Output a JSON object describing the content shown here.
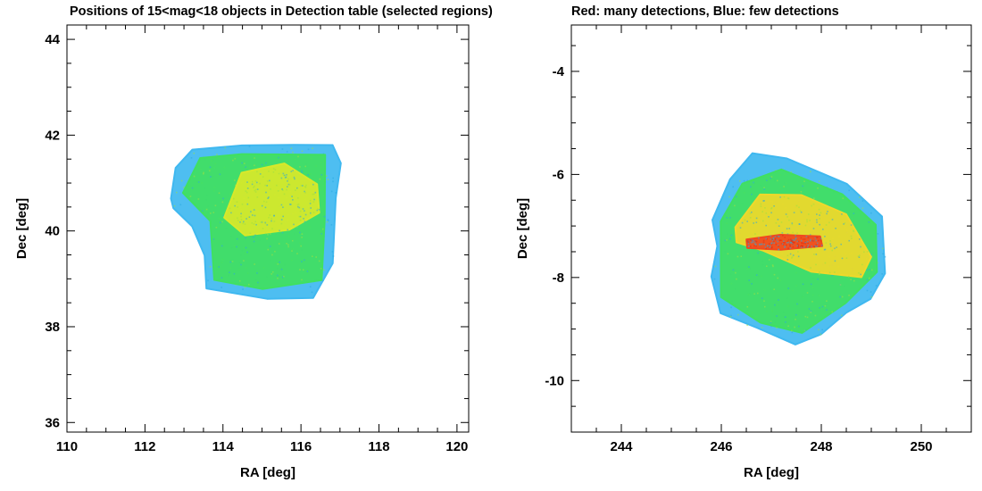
{
  "title_left": "Positions of 15<mag<18 objects in Detection table (selected regions)",
  "title_right": "Red: many detections, Blue: few detections",
  "chart_data": [
    {
      "type": "scatter",
      "xlabel": "RA [deg]",
      "ylabel": "Dec [deg]",
      "xlim": [
        110,
        120.3
      ],
      "ylim": [
        35.8,
        44.3
      ],
      "xticks": [
        "110",
        "112",
        "114",
        "116",
        "118",
        "120"
      ],
      "xtick_values": [
        110,
        112,
        114,
        116,
        118,
        120
      ],
      "yticks": [
        "36",
        "38",
        "40",
        "42",
        "44"
      ],
      "ytick_values": [
        36,
        38,
        40,
        42,
        44
      ],
      "grid": false,
      "regions": [
        {
          "name": "",
          "density": "low",
          "color": "#3fb8f0",
          "outline": [
            [
              112.7,
              40.7
            ],
            [
              112.8,
              41.3
            ],
            [
              113.2,
              41.7
            ],
            [
              114.5,
              41.8
            ],
            [
              115.8,
              41.8
            ],
            [
              116.8,
              41.8
            ],
            [
              117.0,
              41.4
            ],
            [
              116.9,
              40.7
            ],
            [
              116.8,
              39.3
            ],
            [
              116.3,
              38.6
            ],
            [
              115.1,
              38.6
            ],
            [
              113.6,
              38.8
            ],
            [
              113.5,
              39.5
            ],
            [
              113.2,
              40.1
            ],
            [
              112.7,
              40.5
            ]
          ]
        },
        {
          "name": "",
          "density": "medium",
          "color": "#40e060",
          "outline": [
            [
              113.0,
              40.8
            ],
            [
              113.4,
              41.5
            ],
            [
              114.5,
              41.6
            ],
            [
              116.6,
              41.6
            ],
            [
              116.6,
              40.2
            ],
            [
              116.5,
              39.0
            ],
            [
              115.0,
              38.8
            ],
            [
              113.8,
              39.0
            ],
            [
              113.7,
              40.2
            ]
          ]
        },
        {
          "name": "",
          "density": "high",
          "color": "#d8e82a",
          "outline": [
            [
              114.0,
              40.3
            ],
            [
              114.5,
              41.2
            ],
            [
              115.6,
              41.4
            ],
            [
              116.4,
              41.0
            ],
            [
              116.5,
              40.4
            ],
            [
              115.7,
              40.0
            ],
            [
              114.6,
              39.9
            ]
          ]
        }
      ]
    },
    {
      "type": "scatter",
      "xlabel": "RA [deg]",
      "ylabel": "Dec [deg]",
      "xlim": [
        243,
        251
      ],
      "ylim": [
        -11,
        -3.1
      ],
      "xticks": [
        "244",
        "246",
        "248",
        "250"
      ],
      "xtick_values": [
        244,
        246,
        248,
        250
      ],
      "yticks": [
        "-10",
        "-8",
        "-6",
        "-4"
      ],
      "ytick_values": [
        -10,
        -8,
        -6,
        -4
      ],
      "grid": false,
      "regions": [
        {
          "name": "",
          "density": "low",
          "color": "#3fb8f0",
          "outline": [
            [
              245.8,
              -6.9
            ],
            [
              246.2,
              -6.1
            ],
            [
              246.6,
              -5.6
            ],
            [
              247.3,
              -5.7
            ],
            [
              248.5,
              -6.2
            ],
            [
              249.2,
              -6.8
            ],
            [
              249.3,
              -7.9
            ],
            [
              249.0,
              -8.4
            ],
            [
              248.5,
              -8.7
            ],
            [
              248.0,
              -9.1
            ],
            [
              247.5,
              -9.3
            ],
            [
              246.7,
              -9.0
            ],
            [
              246.0,
              -8.7
            ],
            [
              245.8,
              -8.0
            ],
            [
              245.9,
              -7.4
            ]
          ]
        },
        {
          "name": "",
          "density": "medium",
          "color": "#40e060",
          "outline": [
            [
              246.0,
              -6.9
            ],
            [
              246.4,
              -6.2
            ],
            [
              247.2,
              -5.9
            ],
            [
              248.4,
              -6.4
            ],
            [
              249.1,
              -7.0
            ],
            [
              249.1,
              -7.9
            ],
            [
              248.5,
              -8.5
            ],
            [
              247.6,
              -9.1
            ],
            [
              246.8,
              -8.9
            ],
            [
              246.0,
              -8.4
            ]
          ]
        },
        {
          "name": "",
          "density": "high",
          "color": "#f0d82a",
          "outline": [
            [
              246.3,
              -7.0
            ],
            [
              246.8,
              -6.4
            ],
            [
              247.6,
              -6.4
            ],
            [
              248.5,
              -6.8
            ],
            [
              249.0,
              -7.6
            ],
            [
              248.8,
              -8.0
            ],
            [
              247.8,
              -7.9
            ],
            [
              246.8,
              -7.5
            ],
            [
              246.3,
              -7.3
            ]
          ]
        },
        {
          "name": "",
          "density": "very high",
          "color": "#f04820",
          "outline": [
            [
              246.5,
              -7.25
            ],
            [
              247.2,
              -7.15
            ],
            [
              248.0,
              -7.2
            ],
            [
              248.0,
              -7.38
            ],
            [
              247.2,
              -7.45
            ],
            [
              246.5,
              -7.4
            ]
          ]
        }
      ]
    }
  ]
}
